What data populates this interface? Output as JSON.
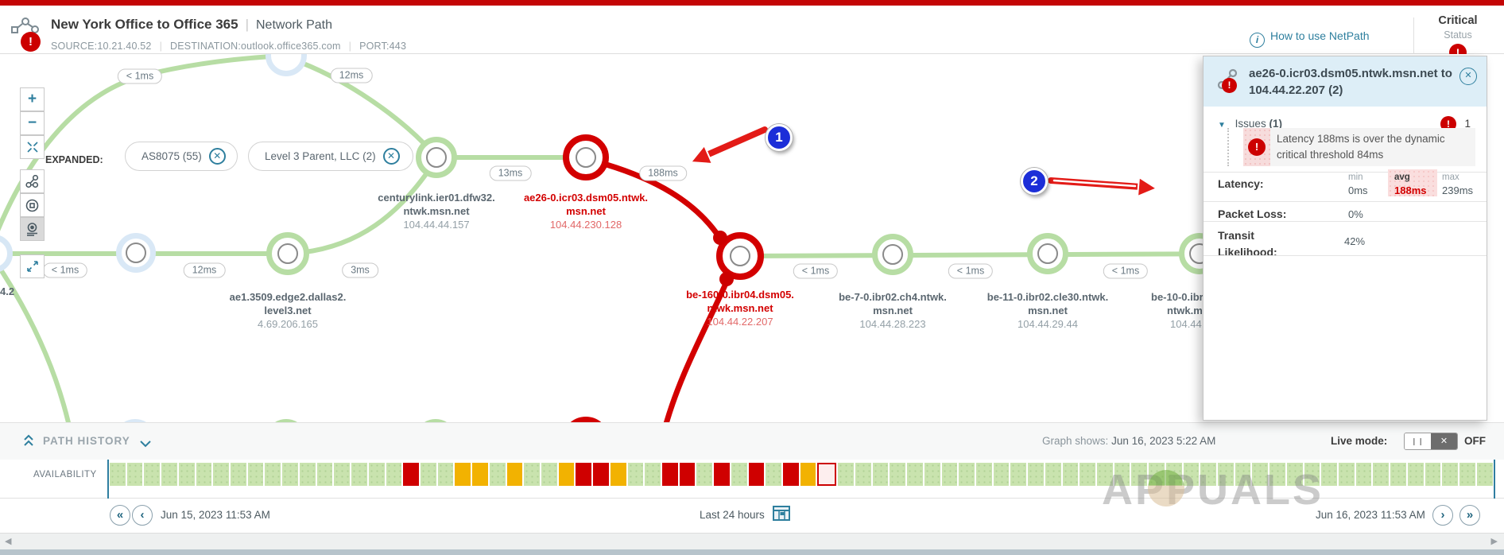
{
  "colors": {
    "accent": "#2e7f9e",
    "critical": "#d30000",
    "path_green": "#b7dda4",
    "warn": "#f2b201",
    "annotation_blue": "#1c2ed8"
  },
  "header": {
    "title": "New York Office to Office 365",
    "subtitle": "Network Path",
    "source": "SOURCE:10.21.40.52",
    "destination": "DESTINATION:outlook.office365.com",
    "port": "PORT:443",
    "help_link": "How to use NetPath",
    "status_label": "Critical",
    "status_sublabel": "Status",
    "status_badge": "!"
  },
  "expanded": {
    "label": "EXPANDED:",
    "chips": [
      "AS8075 (55)",
      "Level 3 Parent, LLC (2)"
    ]
  },
  "graph": {
    "pills": [
      "< 1ms",
      "12ms",
      "< 1ms",
      "12ms",
      "3ms",
      "13ms",
      "188ms",
      "< 1ms",
      "< 1ms",
      "< 1ms"
    ],
    "nodes": {
      "src_tail": {
        "ip": "4.2"
      },
      "ae1": {
        "l1": "ae1.3509.edge2.dallas2.",
        "l2": "level3.net",
        "ip": "4.69.206.165"
      },
      "centurylink": {
        "l1": "centurylink.ier01.dfw32.",
        "l2": "ntwk.msn.net",
        "ip": "104.44.44.157"
      },
      "ae26": {
        "l1": "ae26-0.icr03.dsm05.ntwk.",
        "l2": "msn.net",
        "ip": "104.44.230.128"
      },
      "be160": {
        "l1": "be-160-0.ibr04.dsm05.",
        "l2": "ntwk.msn.net",
        "ip": "104.44.22.207"
      },
      "be7": {
        "l1": "be-7-0.ibr02.ch4.ntwk.",
        "l2": "msn.net",
        "ip": "104.44.28.223"
      },
      "be11": {
        "l1": "be-11-0.ibr02.cle30.ntwk.",
        "l2": "msn.net",
        "ip": "104.44.29.44"
      },
      "be10": {
        "l1": "be-10-0.ibr",
        "l2": "ntwk.m",
        "ip": "104.44."
      }
    },
    "annotations": {
      "one": "1",
      "two": "2"
    }
  },
  "panel": {
    "title_line1": "ae26-0.icr03.dsm05.ntwk.msn.net to",
    "title_line2": "104.44.22.207 (2)",
    "issues_label": "Issues",
    "issues_count": "(1)",
    "issues_badge": "!",
    "issues_number": "1",
    "issue_text": "Latency 188ms is over the dynamic critical threshold 84ms",
    "metrics": {
      "latency_label": "Latency:",
      "min_label": "min",
      "avg_label": "avg",
      "max_label": "max",
      "latency_min": "0ms",
      "latency_avg": "188ms",
      "latency_max": "239ms",
      "packet_loss_label": "Packet Loss:",
      "packet_loss": "0%",
      "transit_label": "Transit Likelihood:",
      "transit": "42%"
    }
  },
  "path_history": {
    "title": "PATH HISTORY",
    "graph_shows_label": "Graph shows:",
    "graph_shows": "Jun 16, 2023 5:22 AM",
    "live_mode_label": "Live mode:",
    "live_mode_state": "OFF",
    "availability_label": "AVAILABILITY",
    "from_date": "Jun 15, 2023 11:53 AM",
    "range_label": "Last 24 hours",
    "to_date": "Jun 16, 2023 11:53 AM",
    "segments": [
      "g",
      "g",
      "g",
      "g",
      "g",
      "g",
      "g",
      "g",
      "g",
      "g",
      "g",
      "g",
      "g",
      "g",
      "g",
      "g",
      "g",
      "r",
      "g",
      "g",
      "y",
      "y",
      "g",
      "y",
      "g",
      "g",
      "y",
      "r",
      "r",
      "y",
      "g",
      "g",
      "r",
      "r",
      "g",
      "r",
      "g",
      "r",
      "g",
      "r",
      "y",
      "m",
      "g",
      "g",
      "g",
      "g",
      "g",
      "g",
      "g",
      "g",
      "g",
      "g",
      "g",
      "g",
      "g",
      "g",
      "g",
      "g",
      "g",
      "g",
      "g",
      "g",
      "g",
      "g",
      "g",
      "g",
      "g",
      "g",
      "g",
      "g",
      "g",
      "g",
      "g",
      "g",
      "g",
      "g",
      "g",
      "g",
      "g",
      "g"
    ]
  },
  "watermark": "APPUALS"
}
